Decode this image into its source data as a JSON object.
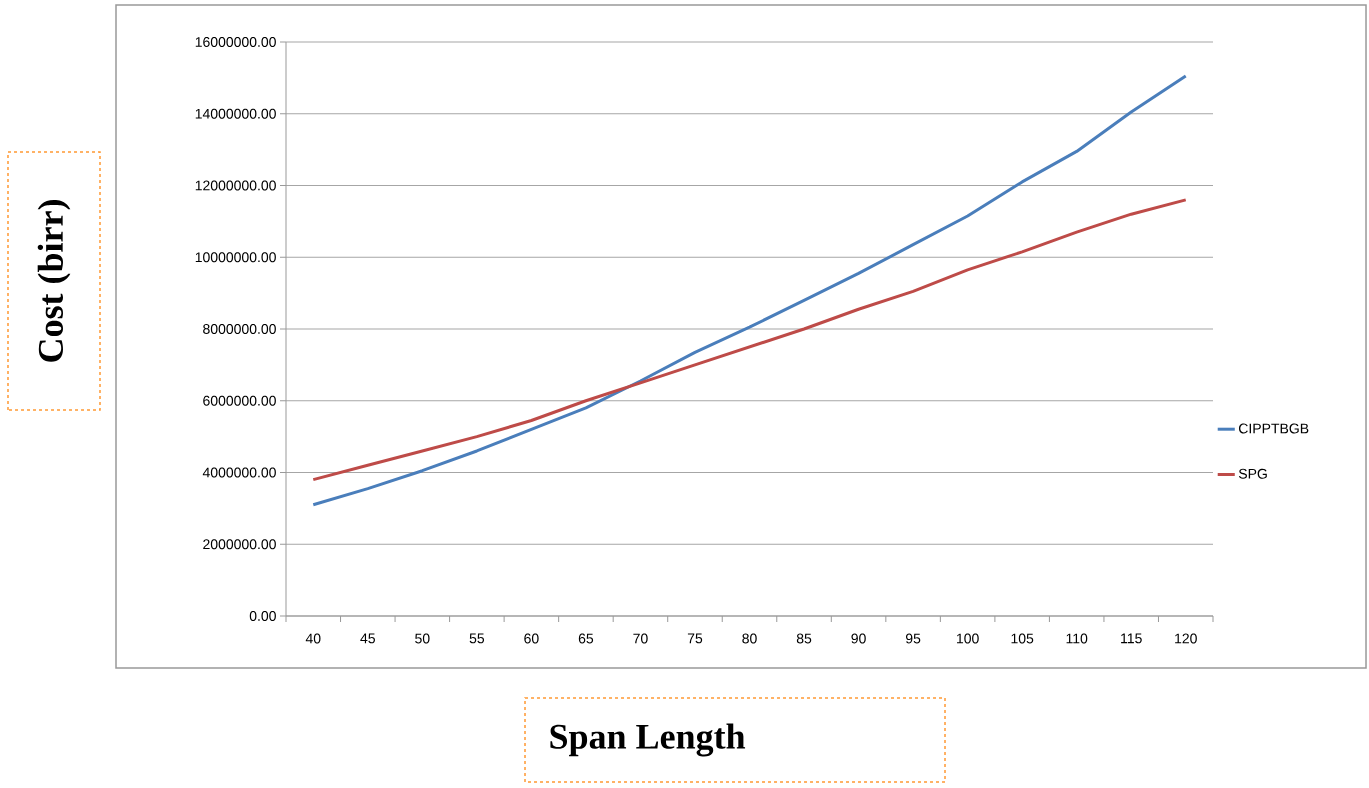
{
  "chart_data": {
    "type": "line",
    "xlabel": "Span Length",
    "ylabel": "Cost (birr)",
    "categories": [
      "40",
      "45",
      "50",
      "55",
      "60",
      "65",
      "70",
      "75",
      "80",
      "85",
      "90",
      "95",
      "100",
      "105",
      "110",
      "115",
      "120"
    ],
    "series": [
      {
        "name": "CIPPTBGB",
        "color": "#4a7ebb",
        "values": [
          3100000,
          3550000,
          4050000,
          4600000,
          5200000,
          5800000,
          6550000,
          7350000,
          8050000,
          8800000,
          9550000,
          10350000,
          11150000,
          12100000,
          12950000,
          14050000,
          15050000
        ]
      },
      {
        "name": "SPG",
        "color": "#be4b48",
        "values": [
          3800000,
          4200000,
          4600000,
          5000000,
          5450000,
          6000000,
          6500000,
          7000000,
          7500000,
          8000000,
          8550000,
          9050000,
          9650000,
          10150000,
          10700000,
          11200000,
          11600000
        ]
      }
    ],
    "ylim": [
      0,
      16000000
    ],
    "yticks": [
      {
        "value": 0,
        "label": "0.00"
      },
      {
        "value": 2000000,
        "label": "2000000.00"
      },
      {
        "value": 4000000,
        "label": "4000000.00"
      },
      {
        "value": 6000000,
        "label": "6000000.00"
      },
      {
        "value": 8000000,
        "label": "8000000.00"
      },
      {
        "value": 10000000,
        "label": "10000000.00"
      },
      {
        "value": 12000000,
        "label": "12000000.00"
      },
      {
        "value": 14000000,
        "label": "14000000.00"
      },
      {
        "value": 16000000,
        "label": "16000000.00"
      }
    ],
    "grid": "y",
    "legend": "right",
    "marker": "none",
    "line_style": "solid"
  }
}
